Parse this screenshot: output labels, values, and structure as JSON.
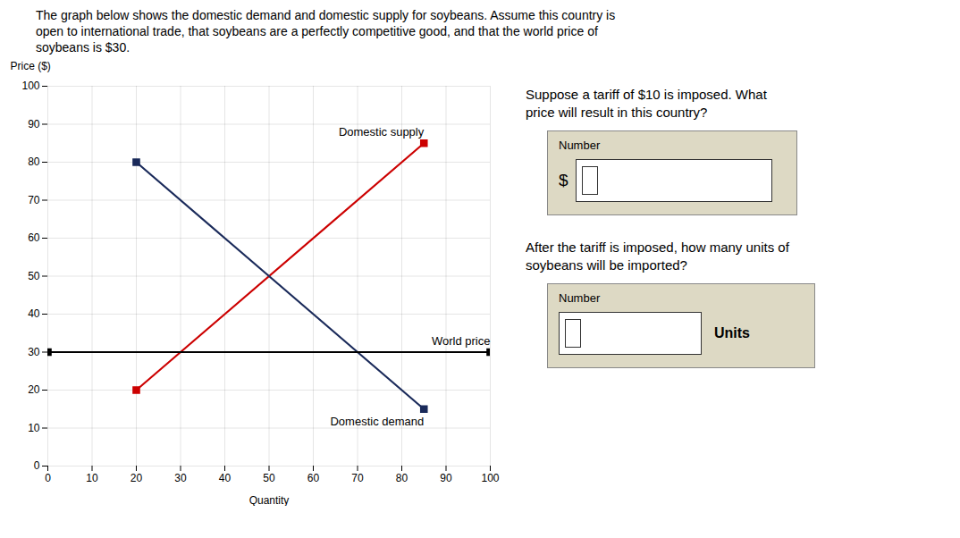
{
  "chart_data": {
    "type": "line",
    "title": "The graph below shows the domestic demand and domestic supply for soybeans. Assume this country is\nopen to international trade, that soybeans are a perfectly competitive good, and that the world price of\nsoybeans is $30.",
    "xlabel": "Quantity",
    "ylabel": "Price ($)",
    "xlim": [
      0,
      100
    ],
    "ylim": [
      0,
      100
    ],
    "xticks": [
      0,
      10,
      20,
      30,
      40,
      50,
      60,
      70,
      80,
      90,
      100
    ],
    "yticks": [
      0,
      10,
      20,
      30,
      40,
      50,
      60,
      70,
      80,
      90,
      100
    ],
    "grid": true,
    "series": [
      {
        "name": "Domestic supply",
        "color": "#cc0000",
        "marker": "square",
        "x": [
          20,
          85
        ],
        "values": [
          20,
          85
        ]
      },
      {
        "name": "Domestic demand",
        "color": "#1a2a5a",
        "marker": "square",
        "x": [
          20,
          85
        ],
        "values": [
          80,
          15
        ]
      },
      {
        "name": "World price",
        "color": "#000000",
        "marker": "square",
        "x": [
          0,
          100
        ],
        "values": [
          30,
          30
        ]
      }
    ],
    "annotations": [
      "Suppose a tariff of $10 is imposed. What\nprice will result in this country?",
      "Number",
      "$",
      "After the tariff is imposed, how many units of\nsoybeans will be imported?",
      "Number",
      "Units"
    ]
  }
}
